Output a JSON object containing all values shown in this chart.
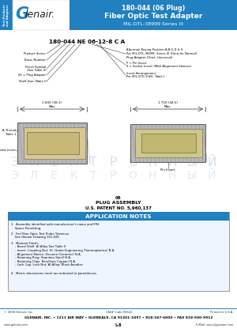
{
  "title_line1": "180-044 (06 Plug)",
  "title_line2": "Fiber Optic Test Adapter",
  "title_line3": "MIL-DTL-38999 Series III",
  "header_bg_color": "#2080c0",
  "header_text_color": "#ffffff",
  "sidebar_bg_color": "#2080c0",
  "sidebar_text": "Test Products\nand Adapters",
  "part_number_label": "180-044 NE 06-12-8 C A",
  "callout_labels_left": [
    "Product Series",
    "Basic Number",
    "Finish Symbol\n(See Table II)",
    "06 = Plug Adapter",
    "Shell Size (Table I)"
  ],
  "callout_labels_right": [
    "Alternate Keying Position A,B,C,D & S\nPer MIL-DTL-38999, Series III (Omit for Normal)\nPlug Adapter (Omit, Universal)",
    "P = Pin Insert\nS = Socket Insert (With Alignment Sleeves)",
    "Insert Arrangement\nPer MIL-STD-1560, Table I"
  ],
  "dim_text1": "1.500 (38.1)\nMax.",
  "dim_text2": "1.750 (44.5)\nMax.",
  "plug_label_line1": "06",
  "plug_label_line2": "PLUG ASSEMBLY",
  "plug_label_line3": "U.S. PATENT NO. 5,960,137",
  "app_notes_title": "APPLICATION NOTES",
  "app_notes_header_bg": "#2080c0",
  "app_notes_header_color": "#ffffff",
  "app_notes": [
    "1.  Assembly identified with manufacturer's name and P/N,\n    Space Permitting.",
    "2.  For Fiber Optic Test Probe Terminus\n    See Glenair Drawing 101-026",
    "3.  Material Finish:\n    - Barrel Shell: Al Alloy See Table II\n    - Insert, Coupling Nut: Hi- Grade Engineering Thermoplastics/ N.A.\n    - Alignment Sleeve: Zirconia (Ceramic)/ N.A.\n    - Retaining Ring: Stainless Steel/ N.A.\n    - Retaining Clips: Beryllium Copper/ N.A.\n    - Lock Cap, Lock Nut: Al Alloy/ Black Anodize",
    "4.  Metric dimensions (mm) are indicated in parentheses."
  ],
  "footer_small": "© 2006 Glenair, Inc.",
  "footer_small_mid": "CAGE Code 06324",
  "footer_small_right": "Printed in U.S.A.",
  "footer_bold": "GLENAIR, INC. • 1211 AIR WAY • GLENDALE, CA 91201-2497 • 818-247-6000 • FAX 818-500-9912",
  "footer_left": "www.glenair.com",
  "footer_center": "L-8",
  "footer_right": "E-Mail: sales@glenair.com",
  "footer_rule_color": "#2080c0",
  "bg_color": "#ffffff",
  "watermark_letters": [
    "Э",
    "Л",
    "Е",
    "К",
    "Т",
    "Р",
    "О",
    "Н",
    "Н",
    "Ы",
    "Й"
  ],
  "watermark_color": "#d0dde8"
}
